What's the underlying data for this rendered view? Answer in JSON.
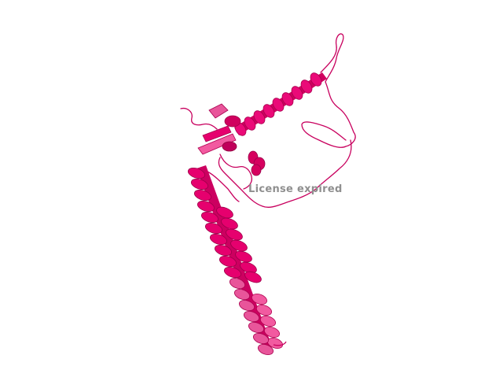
{
  "watermark": {
    "text": "License expired"
  },
  "colors": {
    "background": "#ffffff",
    "ribbon_dark": "#c0005a",
    "ribbon_main": "#e6006e",
    "ribbon_light": "#f25aa0",
    "watermark": "#8f8f8f"
  }
}
